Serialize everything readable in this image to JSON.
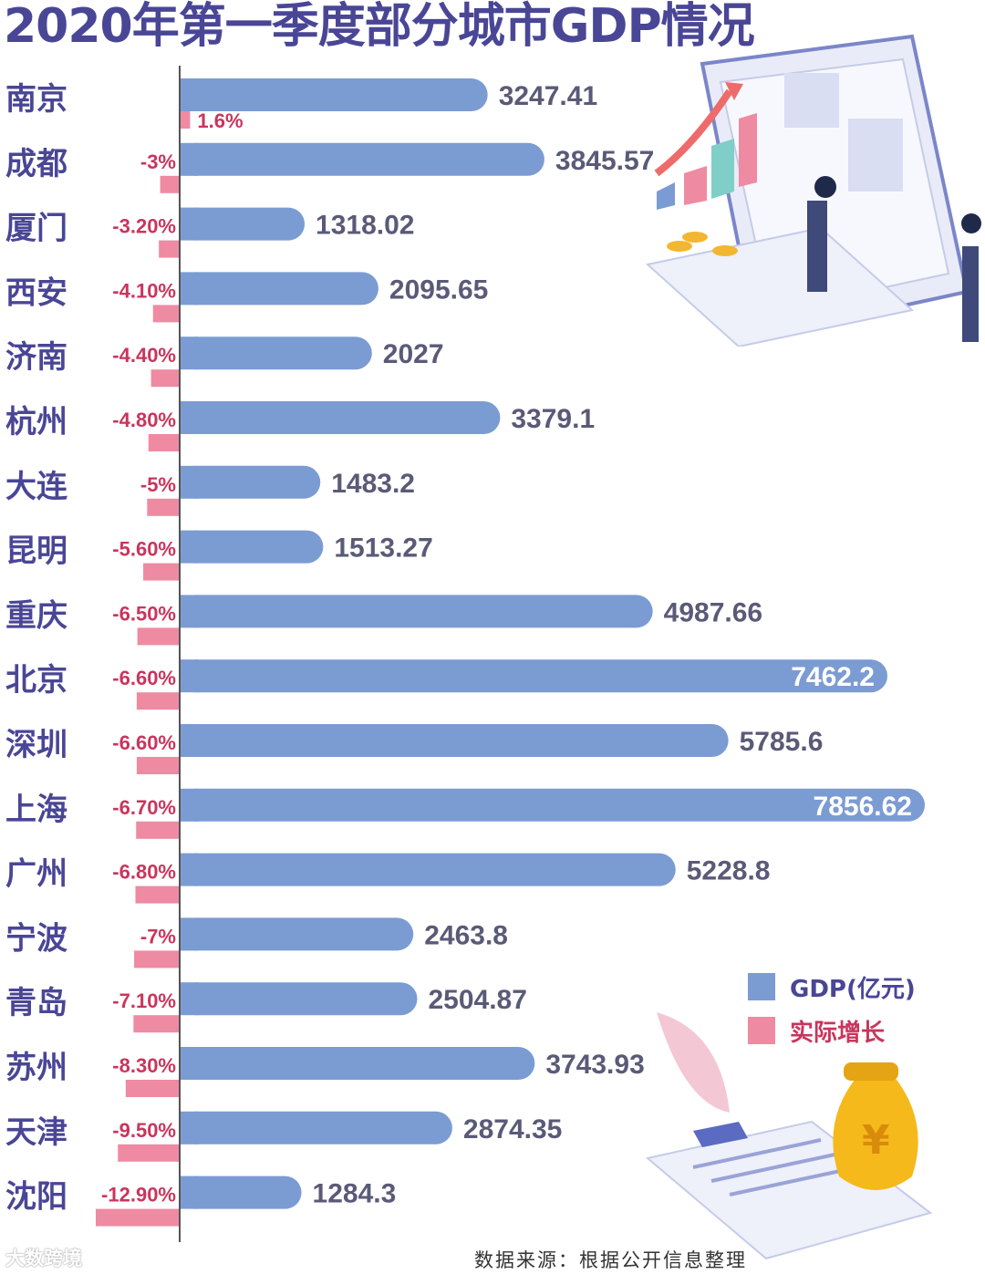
{
  "title": "2020年第一季度部分城市GDP情况",
  "legend": {
    "gdp_label": "GDP(亿元)",
    "growth_label": "实际增长"
  },
  "colors": {
    "gdp_bar": "#7b9bd3",
    "growth_bar": "#ef8aa3",
    "title": "#4a4696",
    "growth_text": "#c9355d"
  },
  "source": "数据来源：根据公开信息整理",
  "watermark": "大数跨境",
  "chart_data": {
    "type": "bar",
    "orientation": "horizontal",
    "title": "2020年第一季度部分城市GDP情况",
    "categories": [
      "南京",
      "成都",
      "厦门",
      "西安",
      "济南",
      "杭州",
      "大连",
      "昆明",
      "重庆",
      "北京",
      "深圳",
      "上海",
      "广州",
      "宁波",
      "青岛",
      "苏州",
      "天津",
      "沈阳"
    ],
    "series": [
      {
        "name": "GDP(亿元)",
        "values": [
          3247.41,
          3845.57,
          1318.02,
          2095.65,
          2027,
          3379.1,
          1483.2,
          1513.27,
          4987.66,
          7462.2,
          5785.6,
          7856.62,
          5228.8,
          2463.8,
          2504.87,
          3743.93,
          2874.35,
          1284.3
        ],
        "labels": [
          "3247.41",
          "3845.57",
          "1318.02",
          "2095.65",
          "2027",
          "3379.1",
          "1483.2",
          "1513.27",
          "4987.66",
          "7462.2",
          "5785.6",
          "7856.62",
          "5228.8",
          "2463.8",
          "2504.87",
          "3743.93",
          "2874.35",
          "1284.3"
        ]
      },
      {
        "name": "实际增长",
        "values": [
          1.6,
          -3,
          -3.2,
          -4.1,
          -4.4,
          -4.8,
          -5,
          -5.6,
          -6.5,
          -6.6,
          -6.6,
          -6.7,
          -6.8,
          -7,
          -7.1,
          -8.3,
          -9.5,
          -12.9
        ],
        "labels": [
          "1.6%",
          "-3%",
          "-3.20%",
          "-4.10%",
          "-4.40%",
          "-4.80%",
          "-5%",
          "-5.60%",
          "-6.50%",
          "-6.60%",
          "-6.60%",
          "-6.70%",
          "-6.80%",
          "-7%",
          "-7.10%",
          "-8.30%",
          "-9.50%",
          "-12.90%"
        ]
      }
    ],
    "legend": "right"
  }
}
